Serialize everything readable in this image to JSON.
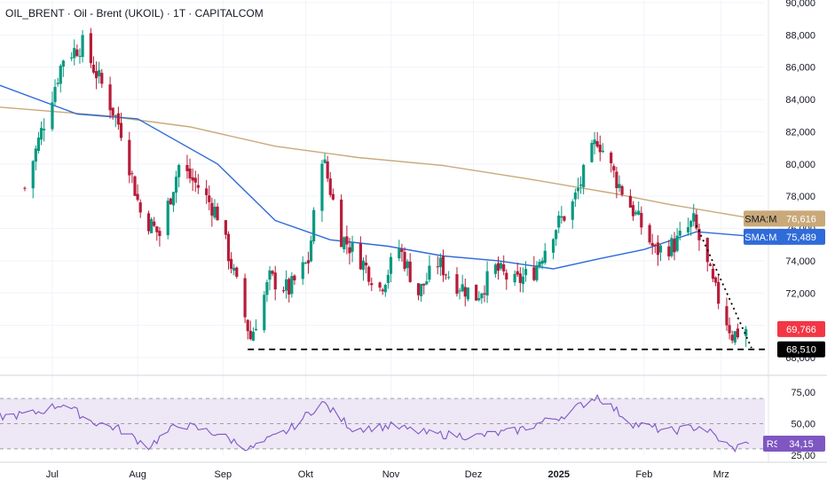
{
  "title": "OIL_BRENT · Oil - Brent (UKOIL) · 1T · CAPITALCOM",
  "colors": {
    "up": "#089981",
    "down": "#b71c3a",
    "sma_fast": "#2f6bd9",
    "sma_slow": "#c9a97a",
    "rsi_line": "#7e57c2",
    "rsi_band": "#ede7f6",
    "price_down_badge": "#f23645",
    "grid": "#f0f3fa"
  },
  "chart_data": [
    {
      "type": "candlestick",
      "title": "OIL_BRENT · Oil - Brent (UKOIL) · 1T · CAPITALCOM",
      "x_labels": [
        "Jul",
        "Aug",
        "Sep",
        "Okt",
        "Nov",
        "Dez",
        "2025",
        "Feb",
        "Mrz"
      ],
      "y_ticks": [
        "90,000",
        "88,000",
        "86,000",
        "84,000",
        "82,000",
        "80,000",
        "78,000",
        "76,000",
        "74,000",
        "72,000",
        "70,000",
        "68,000"
      ],
      "ylim": [
        67.6,
        90.2
      ],
      "grid": true,
      "close_path": [
        {
          "d": "2024-06-21",
          "v": 78.5
        },
        {
          "d": "2024-06-28",
          "v": 82.6
        },
        {
          "d": "2024-07-05",
          "v": 86.6
        },
        {
          "d": "2024-07-12",
          "v": 87.4
        },
        {
          "d": "2024-07-19",
          "v": 84.9
        },
        {
          "d": "2024-07-26",
          "v": 82.1
        },
        {
          "d": "2024-08-02",
          "v": 77.0
        },
        {
          "d": "2024-08-09",
          "v": 75.6
        },
        {
          "d": "2024-08-16",
          "v": 79.9
        },
        {
          "d": "2024-08-23",
          "v": 78.6
        },
        {
          "d": "2024-08-30",
          "v": 76.9
        },
        {
          "d": "2024-09-06",
          "v": 72.5
        },
        {
          "d": "2024-09-11",
          "v": 69.2
        },
        {
          "d": "2024-09-18",
          "v": 72.9
        },
        {
          "d": "2024-09-25",
          "v": 72.2
        },
        {
          "d": "2024-10-02",
          "v": 74.0
        },
        {
          "d": "2024-10-07",
          "v": 80.6
        },
        {
          "d": "2024-10-14",
          "v": 75.5
        },
        {
          "d": "2024-10-21",
          "v": 74.1
        },
        {
          "d": "2024-10-28",
          "v": 72.3
        },
        {
          "d": "2024-11-04",
          "v": 74.8
        },
        {
          "d": "2024-11-11",
          "v": 72.0
        },
        {
          "d": "2024-11-18",
          "v": 73.9
        },
        {
          "d": "2024-11-25",
          "v": 72.6
        },
        {
          "d": "2024-12-02",
          "v": 71.8
        },
        {
          "d": "2024-12-09",
          "v": 73.5
        },
        {
          "d": "2024-12-16",
          "v": 72.6
        },
        {
          "d": "2024-12-23",
          "v": 73.4
        },
        {
          "d": "2024-12-30",
          "v": 75.9
        },
        {
          "d": "2025-01-06",
          "v": 77.5
        },
        {
          "d": "2025-01-15",
          "v": 81.6
        },
        {
          "d": "2025-01-22",
          "v": 79.0
        },
        {
          "d": "2025-01-29",
          "v": 76.8
        },
        {
          "d": "2025-02-05",
          "v": 74.6
        },
        {
          "d": "2025-02-12",
          "v": 75.0
        },
        {
          "d": "2025-02-19",
          "v": 76.4
        },
        {
          "d": "2025-02-26",
          "v": 72.5
        },
        {
          "d": "2025-03-05",
          "v": 69.4
        },
        {
          "d": "2025-03-10",
          "v": 69.8
        }
      ],
      "series": [
        {
          "name": "SMA:MA",
          "label_value": "76,616",
          "points": [
            {
              "d": "2024-06-10",
              "v": 83.55
            },
            {
              "d": "2024-07-20",
              "v": 83.0
            },
            {
              "d": "2024-08-20",
              "v": 82.3
            },
            {
              "d": "2024-09-20",
              "v": 81.1
            },
            {
              "d": "2024-10-20",
              "v": 80.4
            },
            {
              "d": "2024-11-20",
              "v": 79.9
            },
            {
              "d": "2024-12-20",
              "v": 79.1
            },
            {
              "d": "2025-01-20",
              "v": 78.2
            },
            {
              "d": "2025-02-10",
              "v": 77.5
            },
            {
              "d": "2025-03-13",
              "v": 76.6
            }
          ]
        },
        {
          "name": "SMA:MA",
          "label_value": "75,489",
          "points": [
            {
              "d": "2024-06-10",
              "v": 85.0
            },
            {
              "d": "2024-07-10",
              "v": 83.1
            },
            {
              "d": "2024-08-01",
              "v": 82.8
            },
            {
              "d": "2024-08-30",
              "v": 80.0
            },
            {
              "d": "2024-09-20",
              "v": 76.5
            },
            {
              "d": "2024-10-10",
              "v": 75.3
            },
            {
              "d": "2024-10-31",
              "v": 74.9
            },
            {
              "d": "2024-11-20",
              "v": 74.3
            },
            {
              "d": "2024-12-10",
              "v": 74.0
            },
            {
              "d": "2024-12-30",
              "v": 73.5
            },
            {
              "d": "2025-01-15",
              "v": 74.1
            },
            {
              "d": "2025-02-01",
              "v": 74.7
            },
            {
              "d": "2025-02-20",
              "v": 75.8
            },
            {
              "d": "2025-03-13",
              "v": 75.5
            }
          ]
        }
      ],
      "last_price": "69,766",
      "support_line": {
        "value": 68.51,
        "label": "68,510",
        "from": "2024-09-10",
        "to": "2025-03-13"
      },
      "trend_line": {
        "from": {
          "d": "2025-02-20",
          "v": 76.2
        },
        "to": {
          "d": "2025-03-12",
          "v": 68.6
        }
      }
    },
    {
      "type": "line",
      "series": [
        {
          "name": "RSI",
          "label_value": "34,15"
        }
      ],
      "y_ticks": [
        "75,00",
        "50,00",
        "25,00"
      ],
      "ylim": [
        23,
        81
      ],
      "band": [
        30,
        70
      ],
      "rsi_path": [
        {
          "d": "2024-06-10",
          "v": 55
        },
        {
          "d": "2024-06-24",
          "v": 58
        },
        {
          "d": "2024-07-05",
          "v": 66
        },
        {
          "d": "2024-07-15",
          "v": 52
        },
        {
          "d": "2024-07-25",
          "v": 46
        },
        {
          "d": "2024-08-05",
          "v": 32
        },
        {
          "d": "2024-08-16",
          "v": 50
        },
        {
          "d": "2024-08-30",
          "v": 42
        },
        {
          "d": "2024-09-11",
          "v": 30
        },
        {
          "d": "2024-09-25",
          "v": 45
        },
        {
          "d": "2024-10-07",
          "v": 67
        },
        {
          "d": "2024-10-18",
          "v": 46
        },
        {
          "d": "2024-11-01",
          "v": 48
        },
        {
          "d": "2024-11-15",
          "v": 42
        },
        {
          "d": "2024-12-02",
          "v": 40
        },
        {
          "d": "2024-12-16",
          "v": 44
        },
        {
          "d": "2025-01-02",
          "v": 56
        },
        {
          "d": "2025-01-15",
          "v": 72
        },
        {
          "d": "2025-01-28",
          "v": 50
        },
        {
          "d": "2025-02-10",
          "v": 44
        },
        {
          "d": "2025-02-22",
          "v": 48
        },
        {
          "d": "2025-03-05",
          "v": 30
        },
        {
          "d": "2025-03-11",
          "v": 34.15
        }
      ]
    }
  ]
}
